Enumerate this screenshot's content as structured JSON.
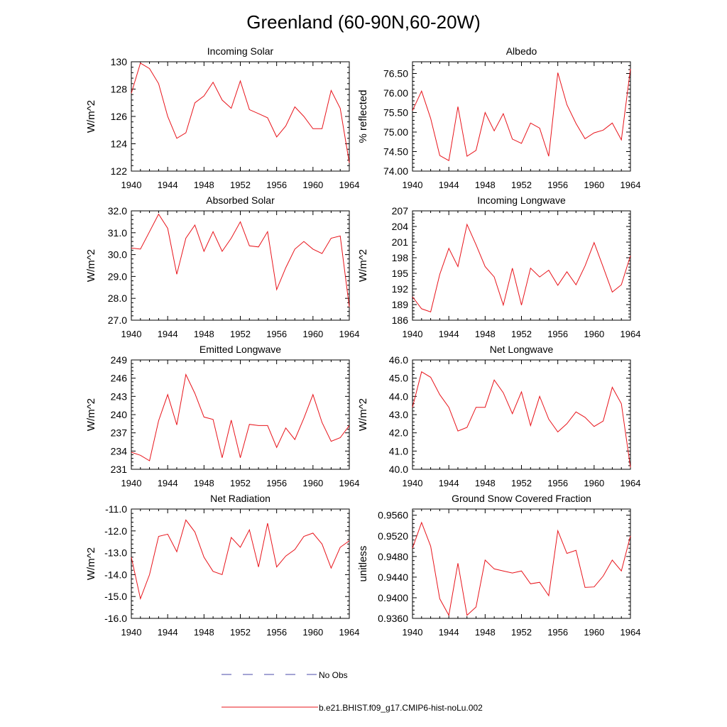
{
  "figure": {
    "title": "Greenland (60-90N,60-20W)",
    "legend": [
      {
        "label": "No Obs",
        "color": "#4a4aa8",
        "style": "dashed"
      },
      {
        "label": "b.e21.BHIST.f09_g17.CMIP6-hist-noLu.002",
        "color": "#e8141b",
        "style": "solid"
      }
    ]
  },
  "chart_data": [
    {
      "type": "line",
      "title": "Incoming Solar",
      "ylabel": "W/m^2",
      "xlim": [
        1940,
        1964
      ],
      "ylim": [
        122,
        130
      ],
      "xticks": [
        1940,
        1944,
        1948,
        1952,
        1956,
        1960,
        1964
      ],
      "yticks": [
        122,
        124,
        126,
        128,
        130
      ],
      "ytick_labels": [
        "122",
        "124",
        "126",
        "128",
        "130"
      ],
      "series": [
        {
          "color": "#e8141b",
          "x": [
            1940,
            1941,
            1942,
            1943,
            1944,
            1945,
            1946,
            1947,
            1948,
            1949,
            1950,
            1951,
            1952,
            1953,
            1954,
            1955,
            1956,
            1957,
            1958,
            1959,
            1960,
            1961,
            1962,
            1963,
            1964
          ],
          "values": [
            127.7,
            129.9,
            129.5,
            128.4,
            126.0,
            124.4,
            124.8,
            127.0,
            127.5,
            128.5,
            127.2,
            126.6,
            128.6,
            126.5,
            126.2,
            125.9,
            124.5,
            125.3,
            126.7,
            126.0,
            125.1,
            125.1,
            127.9,
            126.6,
            122.6
          ]
        }
      ]
    },
    {
      "type": "line",
      "title": "Albedo",
      "ylabel": "% reflected",
      "xlim": [
        1940,
        1964
      ],
      "ylim": [
        74.0,
        76.8
      ],
      "xticks": [
        1940,
        1944,
        1948,
        1952,
        1956,
        1960,
        1964
      ],
      "yticks": [
        74.0,
        74.5,
        75.0,
        75.5,
        76.0,
        76.5
      ],
      "ytick_labels": [
        "74.00",
        "74.50",
        "75.00",
        "75.50",
        "76.00",
        "76.50"
      ],
      "series": [
        {
          "color": "#e8141b",
          "x": [
            1940,
            1941,
            1942,
            1943,
            1944,
            1945,
            1946,
            1947,
            1948,
            1949,
            1950,
            1951,
            1952,
            1953,
            1954,
            1955,
            1956,
            1957,
            1958,
            1959,
            1960,
            1961,
            1962,
            1963,
            1964
          ],
          "values": [
            75.55,
            76.05,
            75.35,
            74.4,
            74.27,
            75.65,
            74.38,
            74.53,
            75.5,
            75.03,
            75.47,
            74.82,
            74.71,
            75.23,
            75.1,
            74.38,
            76.52,
            75.7,
            75.22,
            74.83,
            74.98,
            75.05,
            75.23,
            74.8,
            76.62
          ]
        }
      ]
    },
    {
      "type": "line",
      "title": "Absorbed Solar",
      "ylabel": "W/m^2",
      "xlim": [
        1940,
        1964
      ],
      "ylim": [
        27.0,
        32.0
      ],
      "xticks": [
        1940,
        1944,
        1948,
        1952,
        1956,
        1960,
        1964
      ],
      "yticks": [
        27,
        28,
        29,
        30,
        31,
        32
      ],
      "ytick_labels": [
        "27.0",
        "28.0",
        "29.0",
        "30.0",
        "31.0",
        "32.0"
      ],
      "series": [
        {
          "color": "#e8141b",
          "x": [
            1940,
            1941,
            1942,
            1943,
            1944,
            1945,
            1946,
            1947,
            1948,
            1949,
            1950,
            1951,
            1952,
            1953,
            1954,
            1955,
            1956,
            1957,
            1958,
            1959,
            1960,
            1961,
            1962,
            1963,
            1964
          ],
          "values": [
            30.3,
            30.25,
            31.05,
            31.85,
            31.2,
            29.1,
            30.75,
            31.35,
            30.15,
            31.05,
            30.15,
            30.75,
            31.5,
            30.4,
            30.35,
            31.05,
            28.4,
            29.4,
            30.25,
            30.6,
            30.25,
            30.05,
            30.75,
            30.85,
            27.6
          ]
        }
      ]
    },
    {
      "type": "line",
      "title": "Incoming Longwave",
      "ylabel": "W/m^2",
      "xlim": [
        1940,
        1964
      ],
      "ylim": [
        186,
        207
      ],
      "xticks": [
        1940,
        1944,
        1948,
        1952,
        1956,
        1960,
        1964
      ],
      "yticks": [
        186,
        189,
        192,
        195,
        198,
        201,
        204,
        207
      ],
      "ytick_labels": [
        "186",
        "189",
        "192",
        "195",
        "198",
        "201",
        "204",
        "207"
      ],
      "series": [
        {
          "color": "#e8141b",
          "x": [
            1940,
            1941,
            1942,
            1943,
            1944,
            1945,
            1946,
            1947,
            1948,
            1949,
            1950,
            1951,
            1952,
            1953,
            1954,
            1955,
            1956,
            1957,
            1958,
            1959,
            1960,
            1961,
            1962,
            1963,
            1964
          ],
          "values": [
            190.5,
            188.2,
            187.6,
            194.8,
            199.8,
            196.3,
            204.4,
            200.5,
            196.3,
            194.3,
            188.9,
            196.0,
            188.9,
            196.0,
            194.3,
            195.6,
            192.7,
            195.3,
            192.8,
            196.4,
            200.9,
            196.2,
            191.4,
            192.8,
            198.4
          ]
        }
      ]
    },
    {
      "type": "line",
      "title": "Emitted Longwave",
      "ylabel": "W/m^2",
      "xlim": [
        1940,
        1964
      ],
      "ylim": [
        231,
        249
      ],
      "xticks": [
        1940,
        1944,
        1948,
        1952,
        1956,
        1960,
        1964
      ],
      "yticks": [
        231,
        234,
        237,
        240,
        243,
        246,
        249
      ],
      "ytick_labels": [
        "231",
        "234",
        "237",
        "240",
        "243",
        "246",
        "249"
      ],
      "series": [
        {
          "color": "#e8141b",
          "x": [
            1940,
            1941,
            1942,
            1943,
            1944,
            1945,
            1946,
            1947,
            1948,
            1949,
            1950,
            1951,
            1952,
            1953,
            1954,
            1955,
            1956,
            1957,
            1958,
            1959,
            1960,
            1961,
            1962,
            1963,
            1964
          ],
          "values": [
            233.8,
            233.3,
            232.4,
            239.0,
            243.3,
            238.3,
            246.6,
            243.5,
            239.6,
            239.2,
            232.9,
            239.1,
            232.9,
            238.4,
            238.2,
            238.2,
            234.6,
            237.8,
            235.9,
            239.4,
            243.3,
            238.7,
            235.6,
            236.2,
            238.2
          ]
        }
      ]
    },
    {
      "type": "line",
      "title": "Net Longwave",
      "ylabel": "W/m^2",
      "xlim": [
        1940,
        1964
      ],
      "ylim": [
        40.0,
        46.0
      ],
      "xticks": [
        1940,
        1944,
        1948,
        1952,
        1956,
        1960,
        1964
      ],
      "yticks": [
        40,
        41,
        42,
        43,
        44,
        45,
        46
      ],
      "ytick_labels": [
        "40.0",
        "41.0",
        "42.0",
        "43.0",
        "44.0",
        "45.0",
        "46.0"
      ],
      "series": [
        {
          "color": "#e8141b",
          "x": [
            1940,
            1941,
            1942,
            1943,
            1944,
            1945,
            1946,
            1947,
            1948,
            1949,
            1950,
            1951,
            1952,
            1953,
            1954,
            1955,
            1956,
            1957,
            1958,
            1959,
            1960,
            1961,
            1962,
            1963,
            1964
          ],
          "values": [
            43.4,
            45.35,
            45.05,
            44.1,
            43.4,
            42.1,
            42.3,
            43.4,
            43.4,
            44.9,
            44.2,
            43.05,
            44.25,
            42.4,
            44.0,
            42.75,
            42.05,
            42.5,
            43.15,
            42.85,
            42.35,
            42.65,
            44.5,
            43.6,
            40.1
          ]
        }
      ]
    },
    {
      "type": "line",
      "title": "Net Radiation",
      "ylabel": "W/m^2",
      "xlim": [
        1940,
        1964
      ],
      "ylim": [
        -16.0,
        -11.0
      ],
      "xticks": [
        1940,
        1944,
        1948,
        1952,
        1956,
        1960,
        1964
      ],
      "yticks": [
        -16,
        -15,
        -14,
        -13,
        -12,
        -11
      ],
      "ytick_labels": [
        "-16.0",
        "-15.0",
        "-14.0",
        "-13.0",
        "-12.0",
        "-11.0"
      ],
      "series": [
        {
          "color": "#e8141b",
          "x": [
            1940,
            1941,
            1942,
            1943,
            1944,
            1945,
            1946,
            1947,
            1948,
            1949,
            1950,
            1951,
            1952,
            1953,
            1954,
            1955,
            1956,
            1957,
            1958,
            1959,
            1960,
            1961,
            1962,
            1963,
            1964
          ],
          "values": [
            -13.2,
            -15.1,
            -14.0,
            -12.25,
            -12.15,
            -12.95,
            -11.5,
            -12.05,
            -13.2,
            -13.85,
            -14.0,
            -12.3,
            -12.75,
            -11.95,
            -13.65,
            -11.65,
            -13.65,
            -13.15,
            -12.85,
            -12.25,
            -12.1,
            -12.6,
            -13.7,
            -12.75,
            -12.45
          ]
        }
      ]
    },
    {
      "type": "line",
      "title": "Ground Snow Covered Fraction",
      "ylabel": "unitless",
      "xlim": [
        1940,
        1964
      ],
      "ylim": [
        0.936,
        0.9572
      ],
      "xticks": [
        1940,
        1944,
        1948,
        1952,
        1956,
        1960,
        1964
      ],
      "yticks": [
        0.936,
        0.94,
        0.944,
        0.948,
        0.952,
        0.956
      ],
      "ytick_labels": [
        "0.9360",
        "0.9400",
        "0.9440",
        "0.9480",
        "0.9520",
        "0.9560"
      ],
      "series": [
        {
          "color": "#e8141b",
          "x": [
            1940,
            1941,
            1942,
            1943,
            1944,
            1945,
            1946,
            1947,
            1948,
            1949,
            1950,
            1951,
            1952,
            1953,
            1954,
            1955,
            1956,
            1957,
            1958,
            1959,
            1960,
            1961,
            1962,
            1963,
            1964
          ],
          "values": [
            0.9496,
            0.9546,
            0.95,
            0.9398,
            0.9366,
            0.9467,
            0.9366,
            0.9382,
            0.9473,
            0.9456,
            0.9452,
            0.9448,
            0.9452,
            0.9427,
            0.943,
            0.9404,
            0.953,
            0.9486,
            0.9492,
            0.942,
            0.9421,
            0.9442,
            0.9473,
            0.9452,
            0.952
          ]
        }
      ]
    }
  ]
}
